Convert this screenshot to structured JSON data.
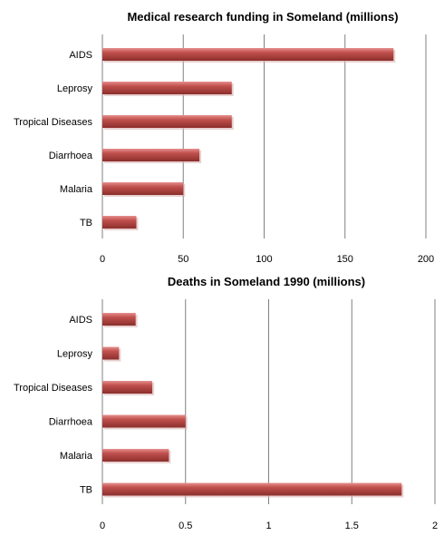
{
  "chart_data": [
    {
      "type": "bar",
      "orientation": "horizontal",
      "title": "Medical research funding in Someland  (millions)",
      "categories": [
        "AIDS",
        "Leprosy",
        "Tropical Diseases",
        "Diarrhoea",
        "Malaria",
        "TB"
      ],
      "values": [
        180,
        80,
        80,
        60,
        50,
        21
      ],
      "xlim": [
        0,
        200
      ],
      "ticks": [
        "0",
        "50",
        "100",
        "150",
        "200"
      ],
      "tick_values": [
        0,
        50,
        100,
        150,
        200
      ],
      "grid": true,
      "bar_color": "#c0504d"
    },
    {
      "type": "bar",
      "orientation": "horizontal",
      "title": "Deaths in Someland 1990  (millions)",
      "categories": [
        "AIDS",
        "Leprosy",
        "Tropical Diseases",
        "Diarrhoea",
        "Malaria",
        "TB"
      ],
      "values": [
        0.2,
        0.1,
        0.3,
        0.5,
        0.4,
        1.8
      ],
      "xlim": [
        0,
        2
      ],
      "ticks": [
        "0",
        "0.5",
        "1",
        "1.5",
        "2"
      ],
      "tick_values": [
        0,
        0.5,
        1,
        1.5,
        2
      ],
      "grid": true,
      "bar_color": "#c0504d"
    }
  ]
}
